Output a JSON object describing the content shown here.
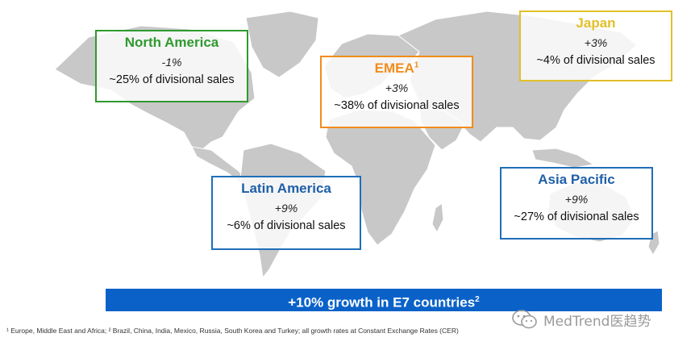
{
  "regions": {
    "north_america": {
      "name": "North America",
      "growth": "-1%",
      "share": "~25% of divisional sales"
    },
    "emea": {
      "name": "EMEA",
      "note_mark": "1",
      "growth": "+3%",
      "share": "~38% of divisional sales"
    },
    "japan": {
      "name": "Japan",
      "growth": "+3%",
      "share": "~4% of divisional sales"
    },
    "latin_america": {
      "name": "Latin America",
      "growth": "+9%",
      "share": "~6% of divisional sales"
    },
    "asia_pacific": {
      "name": "Asia Pacific",
      "growth": "+9%",
      "share": "~27% of divisional sales"
    }
  },
  "banner": {
    "text": "+10% growth in E7 countries",
    "note_mark": "2"
  },
  "footnote": "¹ Europe, Middle East and Africa; ² Brazil, China, India, Mexico, Russia, South Korea and Turkey; all growth rates at Constant Exchange Rates (CER)",
  "watermark": {
    "text": "MedTrend医趋势",
    "icon": "wechat-icon"
  },
  "colors": {
    "map_land": "#c8c8c8",
    "north_america": "#2e9a2e",
    "emea": "#f28c1b",
    "japan": "#e2c02a",
    "latin_america": "#1f6fb8",
    "asia_pacific": "#1f6fb8",
    "banner": "#0a62c9"
  }
}
